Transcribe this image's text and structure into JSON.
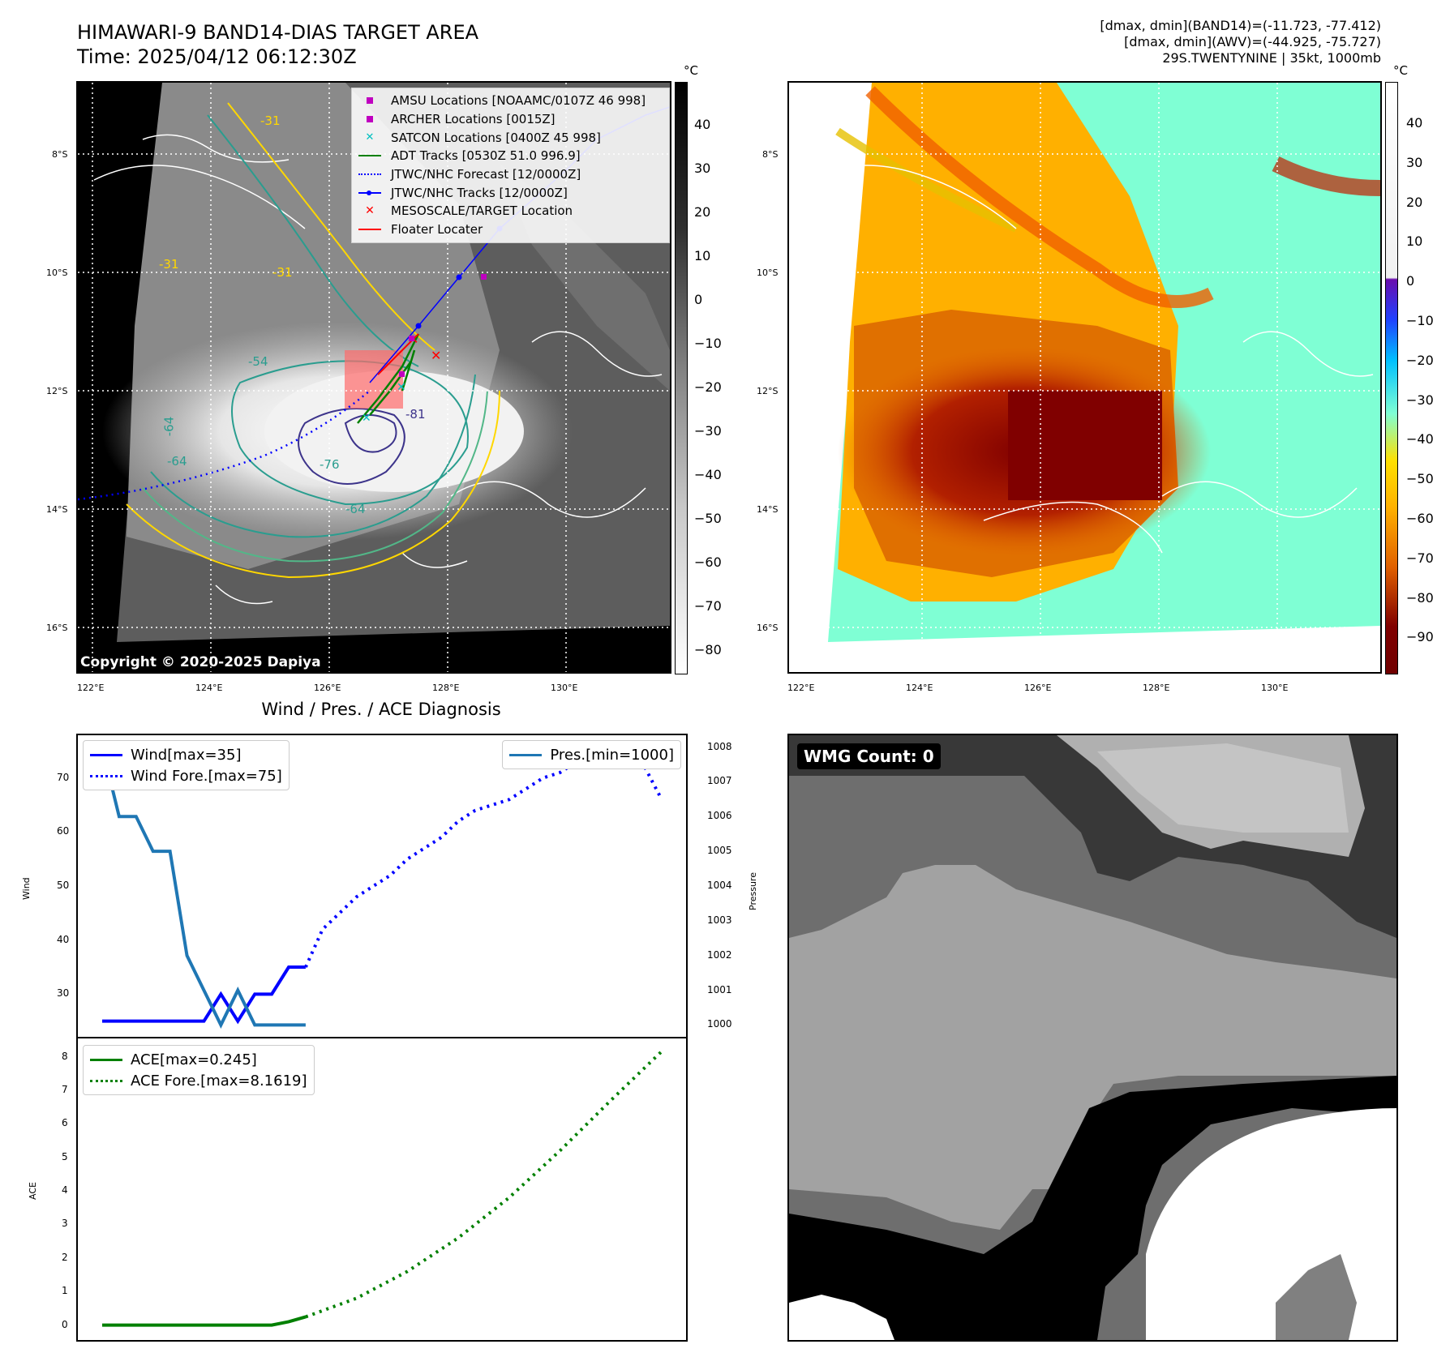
{
  "header": {
    "title": "HIMAWARI-9 BAND14-DIAS TARGET AREA",
    "time": "Time: 2025/04/12 06:12:30Z",
    "stats_band14": "[dmax, dmin](BAND14)=(-11.723, -77.412)",
    "stats_awv": "[dmax, dmin](AWV)=(-44.925, -75.727)",
    "storm": "29S.TWENTYNINE | 35kt, 1000mb"
  },
  "map": {
    "lat_labels": [
      "8°S",
      "10°S",
      "12°S",
      "14°S",
      "16°S"
    ],
    "lon_labels": [
      "122°E",
      "124°E",
      "126°E",
      "128°E",
      "130°E"
    ],
    "contour_labels": [
      "-31",
      "-31",
      "-31",
      "-54",
      "-64",
      "-64",
      "-76",
      "-81",
      "-64"
    ],
    "copyright": "Copyright © 2020-2025 Dapiya",
    "legend": [
      {
        "label": "AMSU Locations [NOAAMC/0107Z 46 998]",
        "color": "#c000c0",
        "symbol": "square"
      },
      {
        "label": "ARCHER Locations [0015Z]",
        "color": "#c000c0",
        "symbol": "square"
      },
      {
        "label": "SATCON Locations [0400Z 45 998]",
        "color": "#00c0c0",
        "symbol": "x"
      },
      {
        "label": "ADT Tracks [0530Z 51.0 996.9]",
        "color": "#008000",
        "symbol": "line"
      },
      {
        "label": "JTWC/NHC Forecast [12/0000Z]",
        "color": "#0000ff",
        "symbol": "dotted"
      },
      {
        "label": "JTWC/NHC Tracks [12/0000Z]",
        "color": "#0000ff",
        "symbol": "line-dot"
      },
      {
        "label": "MESOSCALE/TARGET Location",
        "color": "#ff0000",
        "symbol": "x"
      },
      {
        "label": "Floater Locater",
        "color": "#ff0000",
        "symbol": "line"
      }
    ]
  },
  "colorbar_left": {
    "unit": "°C",
    "ticks": [
      "40",
      "30",
      "20",
      "10",
      "0",
      "−10",
      "−20",
      "−30",
      "−40",
      "−50",
      "−60",
      "−70",
      "−80"
    ]
  },
  "colorbar_right": {
    "unit": "°C",
    "ticks": [
      "40",
      "30",
      "20",
      "10",
      "0",
      "−10",
      "−20",
      "−30",
      "−40",
      "−50",
      "−60",
      "−70",
      "−80",
      "−90"
    ]
  },
  "diagnosis": {
    "title": "Wind / Pres. / ACE Diagnosis",
    "wind_axis_label": "Wind",
    "pressure_axis_label": "Pressure",
    "ace_axis_label": "ACE",
    "wind_ticks": [
      "70",
      "60",
      "50",
      "40",
      "30"
    ],
    "pressure_ticks": [
      "1008",
      "1007",
      "1006",
      "1005",
      "1004",
      "1003",
      "1002",
      "1001",
      "1000"
    ],
    "ace_ticks": [
      "8",
      "7",
      "6",
      "5",
      "4",
      "3",
      "2",
      "1",
      "0"
    ],
    "legend_wind": "Wind[max=35]",
    "legend_wind_fore": "Wind Fore.[max=75]",
    "legend_pres": "Pres.[min=1000]",
    "legend_ace": "ACE[max=0.245]",
    "legend_ace_fore": "ACE Fore.[max=8.1619]"
  },
  "wmg": {
    "label": "WMG Count: 0"
  },
  "chart_data": [
    {
      "type": "line",
      "title": "Wind / Pres. / ACE Diagnosis",
      "ylabel": "Wind",
      "ylim": [
        23,
        77
      ],
      "series": [
        {
          "name": "Wind[max=35]",
          "x": [
            0,
            1,
            2,
            3,
            4,
            5,
            6,
            7,
            8,
            9,
            10,
            11,
            12
          ],
          "values": [
            25,
            25,
            25,
            25,
            25,
            25,
            25,
            30,
            25,
            30,
            30,
            35,
            35
          ],
          "color": "#0000ff",
          "style": "solid"
        },
        {
          "name": "Wind Fore.[max=75]",
          "x": [
            12,
            13,
            14,
            15,
            16,
            17,
            18,
            19,
            20,
            21,
            22,
            23,
            24,
            25,
            26,
            27,
            28,
            29,
            30,
            31,
            32,
            33
          ],
          "values": [
            35,
            42,
            45,
            48,
            50,
            52,
            55,
            57,
            59,
            62,
            64,
            65,
            66,
            68,
            70,
            71,
            73,
            74,
            75,
            74,
            72,
            66
          ],
          "color": "#0000ff",
          "style": "dotted"
        }
      ]
    },
    {
      "type": "line",
      "ylabel": "Pressure",
      "ylim": [
        999.8,
        1008.2
      ],
      "series": [
        {
          "name": "Pres.[min=1000]",
          "x": [
            0,
            1,
            2,
            3,
            4,
            5,
            6,
            7,
            8,
            9,
            10,
            11,
            12
          ],
          "values": [
            1008,
            1006,
            1006,
            1005,
            1005,
            1002,
            1001,
            1000,
            1001,
            1000,
            1000,
            1000,
            1000
          ],
          "color": "#1f77b4",
          "style": "solid"
        }
      ]
    },
    {
      "type": "line",
      "ylabel": "ACE",
      "ylim": [
        -0.3,
        8.4
      ],
      "series": [
        {
          "name": "ACE[max=0.245]",
          "x": [
            0,
            1,
            2,
            3,
            4,
            5,
            6,
            7,
            8,
            9,
            10,
            11,
            12
          ],
          "values": [
            0,
            0,
            0,
            0,
            0,
            0,
            0,
            0,
            0,
            0,
            0,
            0.1,
            0.245
          ],
          "color": "#008000",
          "style": "solid"
        },
        {
          "name": "ACE Fore.[max=8.1619]",
          "x": [
            12,
            15,
            18,
            21,
            24,
            27,
            30,
            33
          ],
          "values": [
            0.245,
            0.8,
            1.6,
            2.6,
            3.8,
            5.2,
            6.7,
            8.16
          ],
          "color": "#008000",
          "style": "dotted"
        }
      ]
    }
  ]
}
